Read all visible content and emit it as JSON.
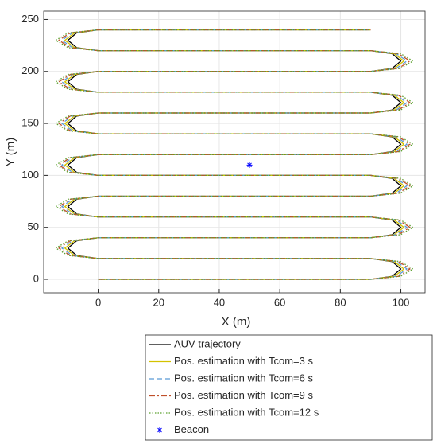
{
  "chart_data": {
    "type": "line",
    "x_label": "X (m)",
    "y_label": "Y (m)",
    "xlim": [
      -18,
      108
    ],
    "ylim": [
      -13,
      258
    ],
    "xticks": [
      0,
      20,
      40,
      60,
      80,
      100
    ],
    "yticks": [
      0,
      50,
      100,
      150,
      200,
      250
    ],
    "grid": true,
    "legend": "below",
    "series": [
      {
        "name": "AUV trajectory",
        "color": "#000000",
        "dash": "solid",
        "x": [
          0,
          90,
          97.1,
          100,
          97.1,
          90,
          0,
          -7.1,
          -10,
          -7.1,
          0,
          90,
          97.1,
          100,
          97.1,
          90,
          0,
          -7.1,
          -10,
          -7.1,
          0,
          90,
          97.1,
          100,
          97.1,
          90,
          0,
          -7.1,
          -10,
          -7.1,
          0,
          90,
          97.1,
          100,
          97.1,
          90,
          0,
          -7.1,
          -10,
          -7.1,
          0,
          90,
          97.1,
          100,
          97.1,
          90,
          0,
          -7.1,
          -10,
          -7.1,
          0,
          90,
          97.1,
          100,
          97.1,
          90,
          0,
          -7.1,
          -10,
          -7.1,
          0,
          90
        ],
        "values": [
          0,
          0,
          2.9,
          10,
          17.1,
          20,
          20,
          22.9,
          30,
          37.1,
          40,
          40,
          42.9,
          50,
          57.1,
          60,
          60,
          62.9,
          70,
          77.1,
          80,
          80,
          82.9,
          90,
          97.1,
          100,
          100,
          102.9,
          110,
          117.1,
          120,
          120,
          122.9,
          130,
          137.1,
          140,
          140,
          142.9,
          150,
          157.1,
          160,
          160,
          162.9,
          170,
          177.1,
          180,
          180,
          182.9,
          190,
          197.1,
          200,
          200,
          202.9,
          210,
          217.1,
          220,
          220,
          222.9,
          230,
          237.1,
          240,
          240
        ]
      },
      {
        "name": "Pos. estimation with Tcom=3 s",
        "color": "#d4c200",
        "dash": "solid",
        "x": [
          0,
          90,
          97.8,
          101,
          97.8,
          90,
          0,
          -7.8,
          -11,
          -7.8,
          0,
          90,
          97.8,
          101,
          97.8,
          90,
          0,
          -7.8,
          -11,
          -7.8,
          0,
          90,
          97.8,
          101,
          97.8,
          90,
          0,
          -7.8,
          -11,
          -7.8,
          0,
          90,
          97.8,
          101,
          97.8,
          90,
          0,
          -7.8,
          -11,
          -7.8,
          0,
          90,
          97.8,
          101,
          97.8,
          90,
          0,
          -7.8,
          -11,
          -7.8,
          0,
          90,
          97.8,
          101,
          97.8,
          90,
          0,
          -7.8,
          -11,
          -7.8,
          0,
          90
        ],
        "values": [
          0,
          0,
          2.9,
          10,
          17.1,
          20,
          20,
          22.9,
          30,
          37.1,
          40,
          40,
          42.9,
          50,
          57.1,
          60,
          60,
          62.9,
          70,
          77.1,
          80,
          80,
          82.9,
          90,
          97.1,
          100,
          100,
          102.9,
          110,
          117.1,
          120,
          120,
          122.9,
          130,
          137.1,
          140,
          140,
          142.9,
          150,
          157.1,
          160,
          160,
          162.9,
          170,
          177.1,
          180,
          180,
          182.9,
          190,
          197.1,
          200,
          200,
          202.9,
          210,
          217.1,
          220,
          220,
          222.9,
          230,
          237.1,
          240,
          240
        ]
      },
      {
        "name": "Pos. estimation with Tcom=6 s",
        "color": "#5b9bd5",
        "dash": "dashed",
        "x": [
          0,
          90,
          98.5,
          102,
          98.5,
          90,
          0,
          -8.5,
          -12,
          -8.5,
          0,
          90,
          98.5,
          102,
          98.5,
          90,
          0,
          -8.5,
          -12,
          -8.5,
          0,
          90,
          98.5,
          102,
          98.5,
          90,
          0,
          -8.5,
          -12,
          -8.5,
          0,
          90,
          98.5,
          102,
          98.5,
          90,
          0,
          -8.5,
          -12,
          -8.5,
          0,
          90,
          98.5,
          102,
          98.5,
          90,
          0,
          -8.5,
          -12,
          -8.5,
          0,
          90,
          98.5,
          102,
          98.5,
          90,
          0,
          -8.5,
          -12,
          -8.5,
          0,
          90
        ],
        "values": [
          0,
          0,
          2.9,
          10,
          17.1,
          20,
          20,
          22.9,
          30,
          37.1,
          40,
          40,
          42.9,
          50,
          57.1,
          60,
          60,
          62.9,
          70,
          77.1,
          80,
          80,
          82.9,
          90,
          97.1,
          100,
          100,
          102.9,
          110,
          117.1,
          120,
          120,
          122.9,
          130,
          137.1,
          140,
          140,
          142.9,
          150,
          157.1,
          160,
          160,
          162.9,
          170,
          177.1,
          180,
          180,
          182.9,
          190,
          197.1,
          200,
          200,
          202.9,
          210,
          217.1,
          220,
          220,
          222.9,
          230,
          237.1,
          240,
          240
        ]
      },
      {
        "name": "Pos. estimation with Tcom=9 s",
        "color": "#c0502a",
        "dash": "dashdot",
        "x": [
          0,
          90,
          99.2,
          103,
          99.2,
          90,
          0,
          -9.2,
          -13,
          -9.2,
          0,
          90,
          99.2,
          103,
          99.2,
          90,
          0,
          -9.2,
          -13,
          -9.2,
          0,
          90,
          99.2,
          103,
          99.2,
          90,
          0,
          -9.2,
          -13,
          -9.2,
          0,
          90,
          99.2,
          103,
          99.2,
          90,
          0,
          -9.2,
          -13,
          -9.2,
          0,
          90,
          99.2,
          103,
          99.2,
          90,
          0,
          -9.2,
          -13,
          -9.2,
          0,
          90,
          99.2,
          103,
          99.2,
          90,
          0,
          -9.2,
          -13,
          -9.2,
          0,
          90
        ],
        "values": [
          0,
          0,
          2.9,
          10,
          17.1,
          20,
          20,
          22.9,
          30,
          37.1,
          40,
          40,
          42.9,
          50,
          57.1,
          60,
          60,
          62.9,
          70,
          77.1,
          80,
          80,
          82.9,
          90,
          97.1,
          100,
          100,
          102.9,
          110,
          117.1,
          120,
          120,
          122.9,
          130,
          137.1,
          140,
          140,
          142.9,
          150,
          157.1,
          160,
          160,
          162.9,
          170,
          177.1,
          180,
          180,
          182.9,
          190,
          197.1,
          200,
          200,
          202.9,
          210,
          217.1,
          220,
          220,
          222.9,
          230,
          237.1,
          240,
          240
        ]
      },
      {
        "name": "Pos. estimation with Tcom=12 s",
        "color": "#5aa02c",
        "dash": "dotted",
        "x": [
          0,
          90,
          99.9,
          104,
          99.9,
          90,
          0,
          -9.9,
          -14,
          -9.9,
          0,
          90,
          99.9,
          104,
          99.9,
          90,
          0,
          -9.9,
          -14,
          -9.9,
          0,
          90,
          99.9,
          104,
          99.9,
          90,
          0,
          -9.9,
          -14,
          -9.9,
          0,
          90,
          99.9,
          104,
          99.9,
          90,
          0,
          -9.9,
          -14,
          -9.9,
          0,
          90,
          99.9,
          104,
          99.9,
          90,
          0,
          -9.9,
          -14,
          -9.9,
          0,
          90,
          99.9,
          104,
          99.9,
          90,
          0,
          -9.9,
          -14,
          -9.9,
          0,
          90
        ],
        "values": [
          0,
          0,
          2.9,
          10,
          17.1,
          20,
          20,
          22.9,
          30,
          37.1,
          40,
          40,
          42.9,
          50,
          57.1,
          60,
          60,
          62.9,
          70,
          77.1,
          80,
          80,
          82.9,
          90,
          97.1,
          100,
          100,
          102.9,
          110,
          117.1,
          120,
          120,
          122.9,
          130,
          137.1,
          140,
          140,
          142.9,
          150,
          157.1,
          160,
          160,
          162.9,
          170,
          177.1,
          180,
          180,
          182.9,
          190,
          197.1,
          200,
          200,
          202.9,
          210,
          217.1,
          220,
          220,
          222.9,
          230,
          237.1,
          240,
          240
        ]
      },
      {
        "name": "Beacon",
        "color": "#0000ff",
        "dash": "none",
        "marker": "asterisk",
        "x": [
          50
        ],
        "values": [
          110
        ]
      }
    ]
  }
}
